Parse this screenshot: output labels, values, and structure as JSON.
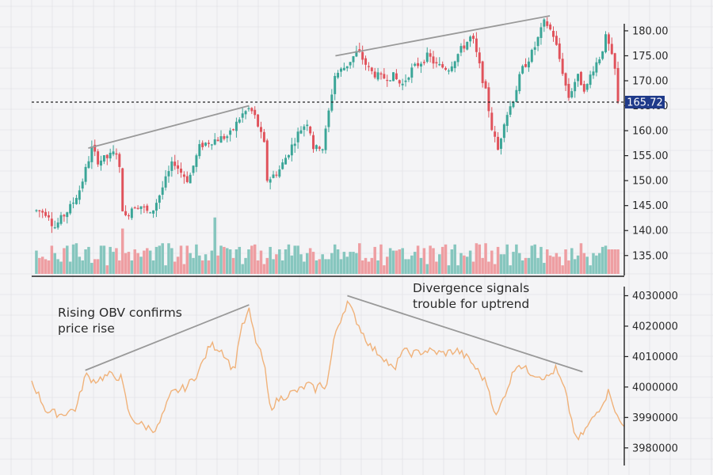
{
  "chart_data": {
    "type": "candlestick",
    "price_panel": {
      "ylim": [
        131,
        183
      ],
      "y_ticks": [
        135,
        140,
        145,
        150,
        155,
        160,
        165,
        170,
        175,
        180
      ],
      "y_tick_labels": [
        "135.00",
        "140.00",
        "145.00",
        "150.00",
        "155.00",
        "160.00",
        "165.00",
        "170.00",
        "175.00",
        "180.00"
      ],
      "current_price": 165.72,
      "current_price_label": "165.72",
      "candle_count": 190,
      "keypoints": [
        [
          0,
          144
        ],
        [
          8,
          143.5
        ],
        [
          12,
          140.5
        ],
        [
          16,
          142
        ],
        [
          24,
          145
        ],
        [
          30,
          148.5
        ],
        [
          38,
          156.5
        ],
        [
          42,
          154
        ],
        [
          48,
          154.5
        ],
        [
          56,
          156
        ],
        [
          58,
          147
        ],
        [
          60,
          142
        ],
        [
          66,
          145
        ],
        [
          72,
          145
        ],
        [
          78,
          143
        ],
        [
          84,
          147
        ],
        [
          94,
          154
        ],
        [
          98,
          152
        ],
        [
          104,
          150
        ],
        [
          112,
          157
        ],
        [
          120,
          158
        ],
        [
          132,
          159
        ],
        [
          140,
          163
        ],
        [
          146,
          164.5
        ],
        [
          150,
          162.5
        ],
        [
          156,
          157
        ],
        [
          158,
          150
        ],
        [
          166,
          152
        ],
        [
          174,
          156.5
        ],
        [
          180,
          160
        ],
        [
          186,
          162
        ],
        [
          190,
          156
        ],
        [
          194,
          157
        ],
        [
          196,
          156.5
        ],
        [
          198,
          160
        ],
        [
          204,
          171
        ],
        [
          212,
          173
        ],
        [
          220,
          176
        ],
        [
          228,
          172
        ],
        [
          236,
          170.5
        ],
        [
          244,
          171
        ],
        [
          250,
          169
        ],
        [
          256,
          172
        ],
        [
          262,
          173.5
        ],
        [
          268,
          175
        ],
        [
          274,
          173
        ],
        [
          282,
          172.5
        ],
        [
          290,
          176
        ],
        [
          298,
          179
        ],
        [
          304,
          172
        ],
        [
          308,
          167
        ],
        [
          312,
          160
        ],
        [
          316,
          156
        ],
        [
          320,
          162
        ],
        [
          326,
          166
        ],
        [
          332,
          172
        ],
        [
          340,
          176
        ],
        [
          348,
          182
        ],
        [
          354,
          179
        ],
        [
          360,
          172
        ],
        [
          364,
          166.5
        ],
        [
          370,
          171
        ],
        [
          376,
          168
        ],
        [
          380,
          172
        ],
        [
          386,
          175
        ],
        [
          390,
          179
        ],
        [
          396,
          172
        ],
        [
          398,
          165.5
        ]
      ],
      "volume": {
        "values": [
          19,
          13,
          14,
          12,
          11,
          23,
          17,
          12,
          10,
          21,
          23,
          10,
          24,
          25,
          14,
          11,
          20,
          22,
          9,
          12,
          12,
          23,
          23,
          7,
          22,
          18,
          21,
          11,
          37,
          17,
          18,
          11,
          20,
          17,
          14,
          19,
          21,
          19,
          11,
          22,
          23,
          25,
          7,
          25,
          21,
          10,
          14,
          23,
          8,
          23,
          17,
          13,
          24,
          15,
          11,
          16,
          11,
          19,
          46,
          15,
          23,
          22,
          21,
          20,
          13,
          20,
          22,
          8,
          13,
          20,
          23,
          24,
          11,
          19,
          8,
          13,
          22,
          12,
          16,
          20,
          11,
          20,
          24,
          15,
          23,
          23,
          16,
          10,
          17,
          21,
          18,
          11,
          12,
          16,
          12,
          12,
          17,
          24,
          20,
          12,
          18,
          14,
          18,
          18,
          17,
          25,
          11,
          13,
          10,
          13,
          22,
          11,
          24,
          7,
          14,
          21,
          19,
          19,
          20,
          21,
          12,
          12,
          15,
          18,
          23,
          13,
          21,
          8,
          23,
          21,
          10,
          16,
          22,
          24,
          7,
          20,
          24,
          7,
          17,
          15,
          14,
          19,
          10,
          25,
          24,
          13,
          25,
          10,
          19,
          8,
          22,
          16,
          16,
          24,
          7,
          18,
          24,
          17,
          11,
          13,
          13,
          23,
          24,
          13,
          22,
          9,
          20,
          15,
          14,
          17,
          14,
          7,
          20,
          11,
          21,
          12,
          15,
          25,
          17,
          14,
          7,
          17,
          15,
          17,
          22,
          23,
          20,
          20,
          20,
          20
        ]
      },
      "trendlines": [
        {
          "from": [
            38,
            156.5
          ],
          "to": [
            146,
            165
          ]
        },
        {
          "from": [
            204,
            175
          ],
          "to": [
            348,
            183
          ]
        }
      ]
    },
    "obv_panel": {
      "ylim": [
        3975000,
        4033000
      ],
      "y_ticks": [
        3980000,
        3990000,
        4000000,
        4010000,
        4020000,
        4030000
      ],
      "y_tick_labels": [
        "3980000",
        "3990000",
        "4000000",
        "4010000",
        "4020000",
        "4030000"
      ],
      "keypoints": [
        [
          0,
          4002000
        ],
        [
          10,
          3992000
        ],
        [
          20,
          3991000
        ],
        [
          30,
          3993000
        ],
        [
          36,
          4004000
        ],
        [
          42,
          4002000
        ],
        [
          52,
          4004000
        ],
        [
          60,
          4003000
        ],
        [
          66,
          3990000
        ],
        [
          76,
          3987000
        ],
        [
          84,
          3986000
        ],
        [
          94,
          3998000
        ],
        [
          104,
          4000000
        ],
        [
          112,
          4005000
        ],
        [
          120,
          4014000
        ],
        [
          128,
          4012000
        ],
        [
          136,
          4005000
        ],
        [
          140,
          4018000
        ],
        [
          146,
          4025000
        ],
        [
          150,
          4016000
        ],
        [
          156,
          4008000
        ],
        [
          160,
          3993000
        ],
        [
          166,
          3996000
        ],
        [
          174,
          3998000
        ],
        [
          180,
          3999000
        ],
        [
          186,
          4001000
        ],
        [
          190,
          3999000
        ],
        [
          194,
          4001000
        ],
        [
          198,
          4000000
        ],
        [
          204,
          4018000
        ],
        [
          212,
          4028000
        ],
        [
          222,
          4018000
        ],
        [
          228,
          4013000
        ],
        [
          236,
          4010000
        ],
        [
          244,
          4005000
        ],
        [
          248,
          4012000
        ],
        [
          256,
          4011000
        ],
        [
          266,
          4012000
        ],
        [
          276,
          4011000
        ],
        [
          286,
          4012000
        ],
        [
          294,
          4009000
        ],
        [
          300,
          4005000
        ],
        [
          306,
          4001000
        ],
        [
          312,
          3990000
        ],
        [
          318,
          3998000
        ],
        [
          326,
          4008000
        ],
        [
          334,
          4005000
        ],
        [
          340,
          4004000
        ],
        [
          346,
          4003000
        ],
        [
          352,
          4006000
        ],
        [
          358,
          3999000
        ],
        [
          366,
          3982000
        ],
        [
          372,
          3986000
        ],
        [
          380,
          3992000
        ],
        [
          388,
          3999000
        ],
        [
          394,
          3989000
        ],
        [
          398,
          3987000
        ]
      ],
      "trendlines": [
        {
          "from": [
            36,
            4005500
          ],
          "to": [
            146,
            4027000
          ]
        },
        {
          "from": [
            212,
            4030000
          ],
          "to": [
            370,
            4005000
          ]
        }
      ]
    }
  },
  "annotations": {
    "rising_line1": "Rising OBV confirms",
    "rising_line2": "price rise",
    "divergence_line1": "Divergence signals",
    "divergence_line2": "trouble for uptrend"
  },
  "colors": {
    "background": "#f4f4f6",
    "grid": "#dcdce2",
    "bull": "#3aa597",
    "bear": "#e0525b",
    "bull_volume": "#86c6be",
    "bear_volume": "#ee9ea2",
    "obv_line": "#f0b27a",
    "trendline": "#999999",
    "price_badge": "#1f3a8a",
    "axis": "#222222"
  }
}
